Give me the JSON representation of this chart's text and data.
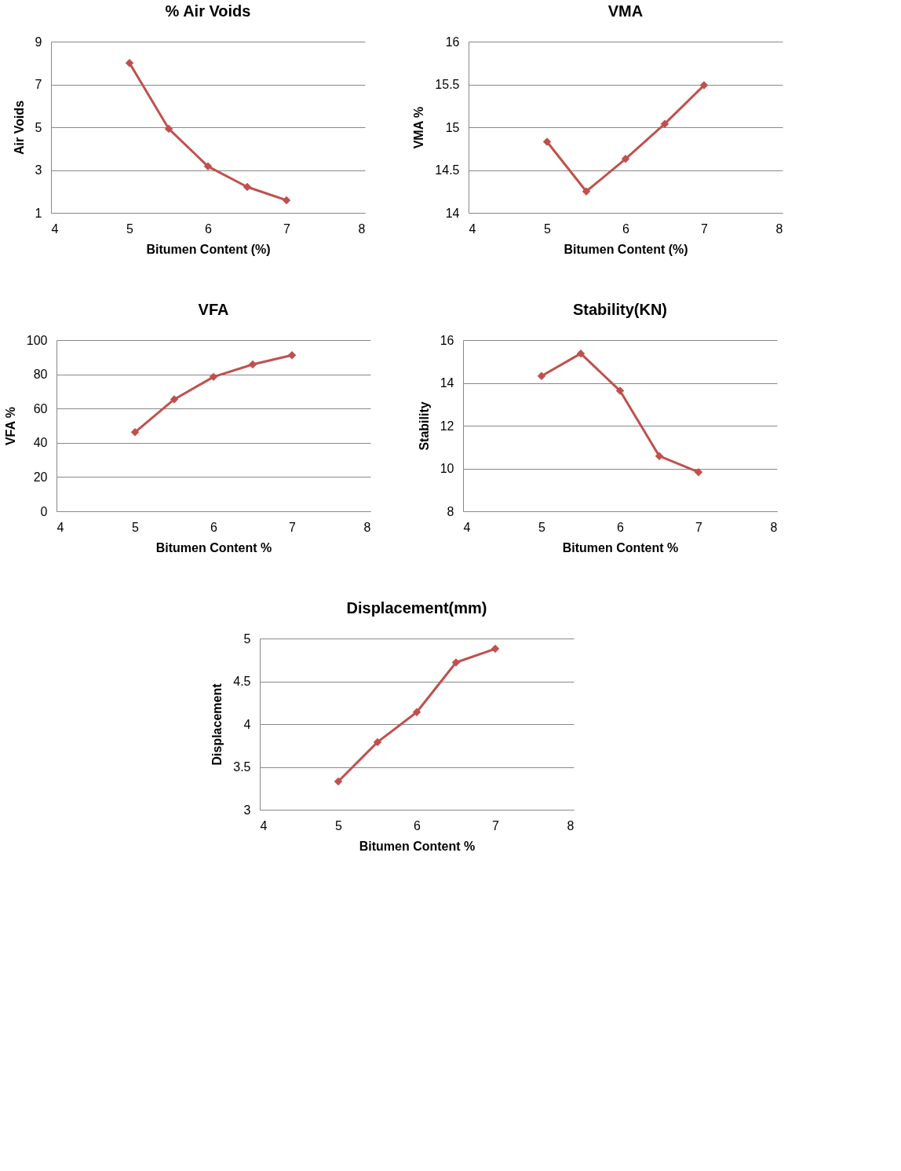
{
  "chart_data": [
    {
      "type": "line",
      "title": "% Air Voids",
      "xlabel": "Bitumen Content (%)",
      "ylabel": "Air Voids",
      "x": [
        5,
        5.5,
        6,
        6.5,
        7
      ],
      "xlim": [
        4,
        8
      ],
      "xticks": [
        4,
        5,
        6,
        7,
        8
      ],
      "ylim": [
        1,
        9
      ],
      "yticks": [
        1,
        3,
        5,
        7,
        9
      ],
      "grid": "y",
      "marker": "diamond",
      "line_style": "solid",
      "legend": false,
      "series": [
        {
          "color": "#c0504d",
          "values": [
            8.0,
            4.93,
            3.17,
            2.21,
            1.59
          ]
        }
      ]
    },
    {
      "type": "line",
      "title": "VMA",
      "xlabel": "Bitumen Content (%)",
      "ylabel": "VMA %",
      "x": [
        5,
        5.5,
        6,
        6.5,
        7
      ],
      "xlim": [
        4,
        8
      ],
      "xticks": [
        4,
        5,
        6,
        7,
        8
      ],
      "ylim": [
        14,
        16
      ],
      "yticks": [
        14,
        14.5,
        15,
        15.5,
        16
      ],
      "grid": "y",
      "marker": "diamond",
      "line_style": "solid",
      "legend": false,
      "series": [
        {
          "color": "#c0504d",
          "values": [
            14.83,
            14.25,
            14.63,
            15.04,
            15.49
          ]
        }
      ]
    },
    {
      "type": "line",
      "title": "VFA",
      "xlabel": "Bitumen Content %",
      "ylabel": "VFA %",
      "x": [
        5,
        5.5,
        6,
        6.5,
        7
      ],
      "xlim": [
        4,
        8
      ],
      "xticks": [
        4,
        5,
        6,
        7,
        8
      ],
      "ylim": [
        0,
        100
      ],
      "yticks": [
        0,
        20,
        40,
        60,
        80,
        100
      ],
      "grid": "y",
      "marker": "diamond",
      "line_style": "solid",
      "legend": false,
      "series": [
        {
          "color": "#c0504d",
          "values": [
            46.2,
            65.4,
            78.5,
            85.8,
            91.2
          ]
        }
      ]
    },
    {
      "type": "line",
      "title": "Stability(KN)",
      "xlabel": "Bitumen Content %",
      "ylabel": "Stability",
      "x": [
        5,
        5.5,
        6,
        6.5,
        7
      ],
      "xlim": [
        4,
        8
      ],
      "xticks": [
        4,
        5,
        6,
        7,
        8
      ],
      "ylim": [
        8,
        16
      ],
      "yticks": [
        8,
        10,
        12,
        14,
        16
      ],
      "grid": "y",
      "marker": "diamond",
      "line_style": "solid",
      "legend": false,
      "series": [
        {
          "color": "#c0504d",
          "values": [
            14.32,
            15.37,
            13.63,
            10.58,
            9.83
          ]
        }
      ]
    },
    {
      "type": "line",
      "title": "Displacement(mm)",
      "xlabel": "Bitumen Content %",
      "ylabel": "Displacement",
      "x": [
        5,
        5.5,
        6,
        6.5,
        7
      ],
      "xlim": [
        4,
        8
      ],
      "xticks": [
        4,
        5,
        6,
        7,
        8
      ],
      "ylim": [
        3,
        5
      ],
      "yticks": [
        3,
        3.5,
        4,
        4.5,
        5
      ],
      "grid": "y",
      "marker": "diamond",
      "line_style": "solid",
      "legend": false,
      "series": [
        {
          "color": "#c0504d",
          "values": [
            3.33,
            3.79,
            4.14,
            4.72,
            4.88
          ]
        }
      ]
    }
  ]
}
